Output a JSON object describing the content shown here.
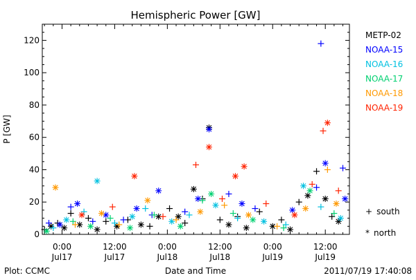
{
  "chart_data": {
    "type": "scatter",
    "title": "Hemispheric Power [GW]",
    "ylabel": "P [GW]",
    "xlabel": "Date and Time",
    "footer_left": "Plot: CCMC",
    "footer_right": "2011/07/19 17:40:08",
    "xlim": [
      "2011-07-16T19:30",
      "2011-07-19T17:30"
    ],
    "ylim": [
      0,
      130
    ],
    "yticks": [
      0,
      20,
      40,
      60,
      80,
      100,
      120
    ],
    "xticks": [
      {
        "time": "2011-07-17T00:00",
        "line1": "0:00",
        "line2": "Jul17"
      },
      {
        "time": "2011-07-17T12:00",
        "line1": "12:00",
        "line2": "Jul17"
      },
      {
        "time": "2011-07-18T00:00",
        "line1": "0:00",
        "line2": "Jul18"
      },
      {
        "time": "2011-07-18T12:00",
        "line1": "12:00",
        "line2": "Jul18"
      },
      {
        "time": "2011-07-19T00:00",
        "line1": "0:00",
        "line2": "Jul19"
      },
      {
        "time": "2011-07-19T12:00",
        "line1": "12:00",
        "line2": "Jul19"
      }
    ],
    "marker_legend": [
      {
        "symbol": "+",
        "label": "south"
      },
      {
        "symbol": "*",
        "label": "north"
      }
    ],
    "series": [
      {
        "name": "METP-02",
        "color": "#000000",
        "points": [
          {
            "t": "2011-07-16T20:00",
            "y": 3,
            "m": "+"
          },
          {
            "t": "2011-07-16T21:30",
            "y": 5,
            "m": "*"
          },
          {
            "t": "2011-07-16T23:00",
            "y": 7,
            "m": "+"
          },
          {
            "t": "2011-07-17T00:30",
            "y": 4,
            "m": "*"
          },
          {
            "t": "2011-07-17T02:00",
            "y": 13,
            "m": "+"
          },
          {
            "t": "2011-07-17T04:00",
            "y": 6,
            "m": "*"
          },
          {
            "t": "2011-07-17T06:00",
            "y": 10,
            "m": "+"
          },
          {
            "t": "2011-07-17T08:00",
            "y": 3,
            "m": "*"
          },
          {
            "t": "2011-07-17T10:00",
            "y": 8,
            "m": "+"
          },
          {
            "t": "2011-07-17T12:30",
            "y": 5,
            "m": "*"
          },
          {
            "t": "2011-07-17T15:00",
            "y": 9,
            "m": "+"
          },
          {
            "t": "2011-07-17T18:00",
            "y": 6,
            "m": "*"
          },
          {
            "t": "2011-07-17T20:00",
            "y": 5,
            "m": "+"
          },
          {
            "t": "2011-07-17T22:00",
            "y": 11,
            "m": "*"
          },
          {
            "t": "2011-07-18T00:30",
            "y": 16,
            "m": "+"
          },
          {
            "t": "2011-07-18T02:30",
            "y": 11,
            "m": "*"
          },
          {
            "t": "2011-07-18T04:00",
            "y": 7,
            "m": "+"
          },
          {
            "t": "2011-07-18T06:00",
            "y": 28,
            "m": "*"
          },
          {
            "t": "2011-07-18T08:00",
            "y": 22,
            "m": "+"
          },
          {
            "t": "2011-07-18T09:30",
            "y": 66,
            "m": "*"
          },
          {
            "t": "2011-07-18T12:00",
            "y": 9,
            "m": "+"
          },
          {
            "t": "2011-07-18T14:00",
            "y": 6,
            "m": "*"
          },
          {
            "t": "2011-07-18T16:00",
            "y": 11,
            "m": "+"
          },
          {
            "t": "2011-07-18T18:00",
            "y": 4,
            "m": "*"
          },
          {
            "t": "2011-07-18T21:00",
            "y": 14,
            "m": "+"
          },
          {
            "t": "2011-07-19T00:00",
            "y": 5,
            "m": "*"
          },
          {
            "t": "2011-07-19T02:00",
            "y": 9,
            "m": "+"
          },
          {
            "t": "2011-07-19T04:00",
            "y": 3,
            "m": "*"
          },
          {
            "t": "2011-07-19T06:00",
            "y": 20,
            "m": "+"
          },
          {
            "t": "2011-07-19T08:00",
            "y": 24,
            "m": "*"
          },
          {
            "t": "2011-07-19T10:00",
            "y": 39,
            "m": "+"
          },
          {
            "t": "2011-07-19T12:00",
            "y": 22,
            "m": "*"
          },
          {
            "t": "2011-07-19T13:30",
            "y": 11,
            "m": "+"
          },
          {
            "t": "2011-07-19T15:00",
            "y": 8,
            "m": "*"
          }
        ]
      },
      {
        "name": "NOAA-15",
        "color": "#0000ff",
        "points": [
          {
            "t": "2011-07-16T21:00",
            "y": 7,
            "m": "+"
          },
          {
            "t": "2011-07-16T23:30",
            "y": 6,
            "m": "*"
          },
          {
            "t": "2011-07-17T02:00",
            "y": 17,
            "m": "+"
          },
          {
            "t": "2011-07-17T03:30",
            "y": 19,
            "m": "*"
          },
          {
            "t": "2011-07-17T07:00",
            "y": 8,
            "m": "+"
          },
          {
            "t": "2011-07-17T10:00",
            "y": 12,
            "m": "*"
          },
          {
            "t": "2011-07-17T14:00",
            "y": 9,
            "m": "+"
          },
          {
            "t": "2011-07-17T17:00",
            "y": 16,
            "m": "*"
          },
          {
            "t": "2011-07-17T20:30",
            "y": 12,
            "m": "+"
          },
          {
            "t": "2011-07-17T22:00",
            "y": 27,
            "m": "*"
          },
          {
            "t": "2011-07-18T04:00",
            "y": 14,
            "m": "+"
          },
          {
            "t": "2011-07-18T07:00",
            "y": 22,
            "m": "*"
          },
          {
            "t": "2011-07-18T09:30",
            "y": 65,
            "m": "*"
          },
          {
            "t": "2011-07-18T14:00",
            "y": 25,
            "m": "+"
          },
          {
            "t": "2011-07-18T17:00",
            "y": 19,
            "m": "*"
          },
          {
            "t": "2011-07-18T20:00",
            "y": 16,
            "m": "+"
          },
          {
            "t": "2011-07-19T04:30",
            "y": 15,
            "m": "*"
          },
          {
            "t": "2011-07-19T10:00",
            "y": 29,
            "m": "+"
          },
          {
            "t": "2011-07-19T11:00",
            "y": 118,
            "m": "+"
          },
          {
            "t": "2011-07-19T12:00",
            "y": 44,
            "m": "*"
          },
          {
            "t": "2011-07-19T16:00",
            "y": 41,
            "m": "+"
          },
          {
            "t": "2011-07-19T16:30",
            "y": 22,
            "m": "*"
          }
        ]
      },
      {
        "name": "NOAA-16",
        "color": "#00c0e0",
        "points": [
          {
            "t": "2011-07-16T22:00",
            "y": 4,
            "m": "+"
          },
          {
            "t": "2011-07-17T01:00",
            "y": 9,
            "m": "*"
          },
          {
            "t": "2011-07-17T05:00",
            "y": 14,
            "m": "+"
          },
          {
            "t": "2011-07-17T08:00",
            "y": 33,
            "m": "*"
          },
          {
            "t": "2011-07-17T12:00",
            "y": 7,
            "m": "+"
          },
          {
            "t": "2011-07-17T16:00",
            "y": 11,
            "m": "*"
          },
          {
            "t": "2011-07-17T19:00",
            "y": 16,
            "m": "+"
          },
          {
            "t": "2011-07-18T01:00",
            "y": 8,
            "m": "*"
          },
          {
            "t": "2011-07-18T05:00",
            "y": 12,
            "m": "+"
          },
          {
            "t": "2011-07-18T11:00",
            "y": 18,
            "m": "*"
          },
          {
            "t": "2011-07-18T16:00",
            "y": 10,
            "m": "+"
          },
          {
            "t": "2011-07-18T22:00",
            "y": 8,
            "m": "*"
          },
          {
            "t": "2011-07-19T03:00",
            "y": 6,
            "m": "+"
          },
          {
            "t": "2011-07-19T07:00",
            "y": 30,
            "m": "*"
          },
          {
            "t": "2011-07-19T11:00",
            "y": 17,
            "m": "+"
          },
          {
            "t": "2011-07-19T15:30",
            "y": 10,
            "m": "*"
          }
        ]
      },
      {
        "name": "NOAA-17",
        "color": "#00d070",
        "points": [
          {
            "t": "2011-07-16T20:30",
            "y": 2,
            "m": "*"
          },
          {
            "t": "2011-07-17T02:30",
            "y": 8,
            "m": "+"
          },
          {
            "t": "2011-07-17T06:30",
            "y": 5,
            "m": "*"
          },
          {
            "t": "2011-07-17T11:00",
            "y": 10,
            "m": "+"
          },
          {
            "t": "2011-07-17T15:30",
            "y": 4,
            "m": "*"
          },
          {
            "t": "2011-07-17T21:00",
            "y": 12,
            "m": "+"
          },
          {
            "t": "2011-07-18T03:00",
            "y": 5,
            "m": "*"
          },
          {
            "t": "2011-07-18T08:00",
            "y": 21,
            "m": "+"
          },
          {
            "t": "2011-07-18T10:00",
            "y": 25,
            "m": "*"
          },
          {
            "t": "2011-07-18T15:00",
            "y": 13,
            "m": "+"
          },
          {
            "t": "2011-07-18T19:30",
            "y": 9,
            "m": "*"
          },
          {
            "t": "2011-07-19T02:30",
            "y": 4,
            "m": "+"
          },
          {
            "t": "2011-07-19T08:30",
            "y": 27,
            "m": "*"
          },
          {
            "t": "2011-07-19T14:00",
            "y": 13,
            "m": "+"
          }
        ]
      },
      {
        "name": "NOAA-18",
        "color": "#ff9900",
        "points": [
          {
            "t": "2011-07-16T22:30",
            "y": 29,
            "m": "*"
          },
          {
            "t": "2011-07-17T03:00",
            "y": 6,
            "m": "+"
          },
          {
            "t": "2011-07-17T09:00",
            "y": 13,
            "m": "*"
          },
          {
            "t": "2011-07-17T13:00",
            "y": 6,
            "m": "+"
          },
          {
            "t": "2011-07-17T19:30",
            "y": 21,
            "m": "*"
          },
          {
            "t": "2011-07-18T02:00",
            "y": 9,
            "m": "+"
          },
          {
            "t": "2011-07-18T07:30",
            "y": 14,
            "m": "*"
          },
          {
            "t": "2011-07-18T13:00",
            "y": 18,
            "m": "+"
          },
          {
            "t": "2011-07-18T18:30",
            "y": 12,
            "m": "*"
          },
          {
            "t": "2011-07-19T01:00",
            "y": 5,
            "m": "+"
          },
          {
            "t": "2011-07-19T07:30",
            "y": 16,
            "m": "*"
          },
          {
            "t": "2011-07-19T12:30",
            "y": 40,
            "m": "+"
          },
          {
            "t": "2011-07-19T14:30",
            "y": 19,
            "m": "*"
          }
        ]
      },
      {
        "name": "NOAA-19",
        "color": "#ff2200",
        "points": [
          {
            "t": "2011-07-17T04:30",
            "y": 12,
            "m": "*"
          },
          {
            "t": "2011-07-17T11:30",
            "y": 17,
            "m": "+"
          },
          {
            "t": "2011-07-17T16:30",
            "y": 36,
            "m": "*"
          },
          {
            "t": "2011-07-17T23:00",
            "y": 11,
            "m": "+"
          },
          {
            "t": "2011-07-18T06:30",
            "y": 43,
            "m": "+"
          },
          {
            "t": "2011-07-18T09:30",
            "y": 54,
            "m": "*"
          },
          {
            "t": "2011-07-18T12:30",
            "y": 22,
            "m": "+"
          },
          {
            "t": "2011-07-18T15:30",
            "y": 36,
            "m": "*"
          },
          {
            "t": "2011-07-18T17:30",
            "y": 42,
            "m": "*"
          },
          {
            "t": "2011-07-18T22:30",
            "y": 19,
            "m": "+"
          },
          {
            "t": "2011-07-19T05:00",
            "y": 12,
            "m": "*"
          },
          {
            "t": "2011-07-19T09:00",
            "y": 31,
            "m": "+"
          },
          {
            "t": "2011-07-19T11:30",
            "y": 64,
            "m": "+"
          },
          {
            "t": "2011-07-19T12:30",
            "y": 69,
            "m": "*"
          },
          {
            "t": "2011-07-19T15:00",
            "y": 27,
            "m": "+"
          }
        ]
      }
    ]
  }
}
